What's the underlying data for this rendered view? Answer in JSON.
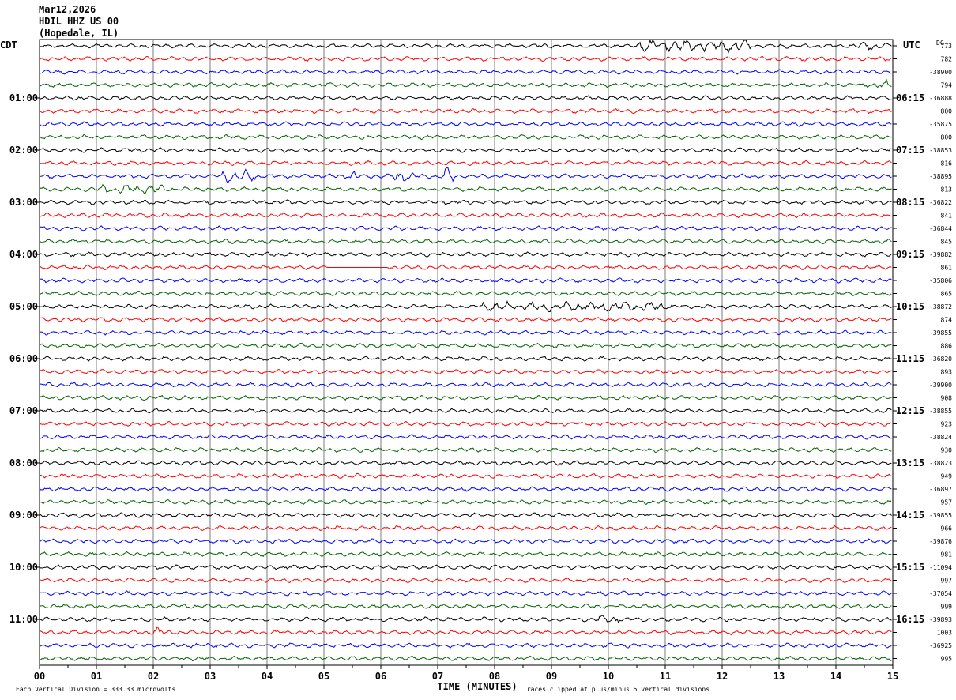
{
  "header": {
    "date": "Mar12,2026",
    "station": "HDIL HHZ US 00",
    "location": "(Hopedale, IL)"
  },
  "left_tz": "CDT",
  "right_tz": "UTC",
  "dc_label": "DC",
  "footer": {
    "xlabel": "TIME (MINUTES)",
    "scale_note": "Each Vertical Division =  333.33 microvolts",
    "clip_note": "Traces clipped at plus/minus 5 vertical divisions"
  },
  "colors": {
    "black": "#000000",
    "red": "#ff0000",
    "blue": "#0000ff",
    "green": "#006400",
    "grid": "#000000"
  },
  "chart_data": {
    "type": "line",
    "xlim": [
      0,
      15
    ],
    "x_ticks": [
      "00",
      "01",
      "02",
      "03",
      "04",
      "05",
      "06",
      "07",
      "08",
      "09",
      "10",
      "11",
      "12",
      "13",
      "14",
      "15"
    ],
    "traces_per_hour": 4,
    "trace_minutes": 15,
    "color_cycle": [
      "black",
      "red",
      "blue",
      "green"
    ],
    "left_hour_labels": [
      "01:00",
      "02:00",
      "03:00",
      "04:00",
      "05:00",
      "06:00",
      "07:00",
      "08:00",
      "09:00",
      "10:00",
      "11:00"
    ],
    "right_hour_labels": [
      "06:15",
      "07:15",
      "08:15",
      "09:15",
      "10:15",
      "11:15",
      "12:15",
      "13:15",
      "14:15",
      "15:15",
      "16:15"
    ],
    "hour_label_first_trace": 4,
    "dc_offsets": [
      "773",
      "782",
      "-38900",
      "794",
      "-36888",
      "800",
      "-35875",
      "800",
      "-38853",
      "816",
      "-38895",
      "813",
      "-36822",
      "841",
      "-36844",
      "845",
      "-39882",
      "861",
      "-35806",
      "865",
      "-38872",
      "874",
      "-39855",
      "886",
      "-36820",
      "893",
      "-39900",
      "908",
      "-38855",
      "923",
      "-38824",
      "930",
      "-38823",
      "949",
      "-36897",
      "957",
      "-39855",
      "966",
      "-39876",
      "981",
      "-11094",
      "997",
      "-37054",
      "999",
      "-39893",
      "1003",
      "-36925",
      "995"
    ],
    "events": [
      {
        "trace": 0,
        "minute_start": 10.5,
        "minute_end": 12.5,
        "amplitude": 1.8
      },
      {
        "trace": 0,
        "minute_start": 14.4,
        "minute_end": 14.9,
        "amplitude": 1.3
      },
      {
        "trace": 3,
        "minute_start": 14.7,
        "minute_end": 14.9,
        "amplitude": 1.5
      },
      {
        "trace": 10,
        "minute_start": 3.2,
        "minute_end": 3.8,
        "amplitude": 1.8
      },
      {
        "trace": 10,
        "minute_start": 5.45,
        "minute_end": 5.6,
        "amplitude": 2.0
      },
      {
        "trace": 10,
        "minute_start": 6.2,
        "minute_end": 6.6,
        "amplitude": 1.6
      },
      {
        "trace": 10,
        "minute_start": 7.1,
        "minute_end": 7.3,
        "amplitude": 2.4
      },
      {
        "trace": 11,
        "minute_start": 1.0,
        "minute_end": 2.2,
        "amplitude": 1.4
      },
      {
        "trace": 20,
        "minute_start": 7.8,
        "minute_end": 11.0,
        "amplitude": 1.4
      },
      {
        "trace": 44,
        "minute_start": 9.8,
        "minute_end": 10.2,
        "amplitude": 1.4
      },
      {
        "trace": 45,
        "minute_start": 2.0,
        "minute_end": 2.2,
        "amplitude": 1.6
      }
    ],
    "flat_segments": [
      {
        "trace": 17,
        "minute_start": 5.05,
        "minute_end": 6.1
      }
    ]
  }
}
